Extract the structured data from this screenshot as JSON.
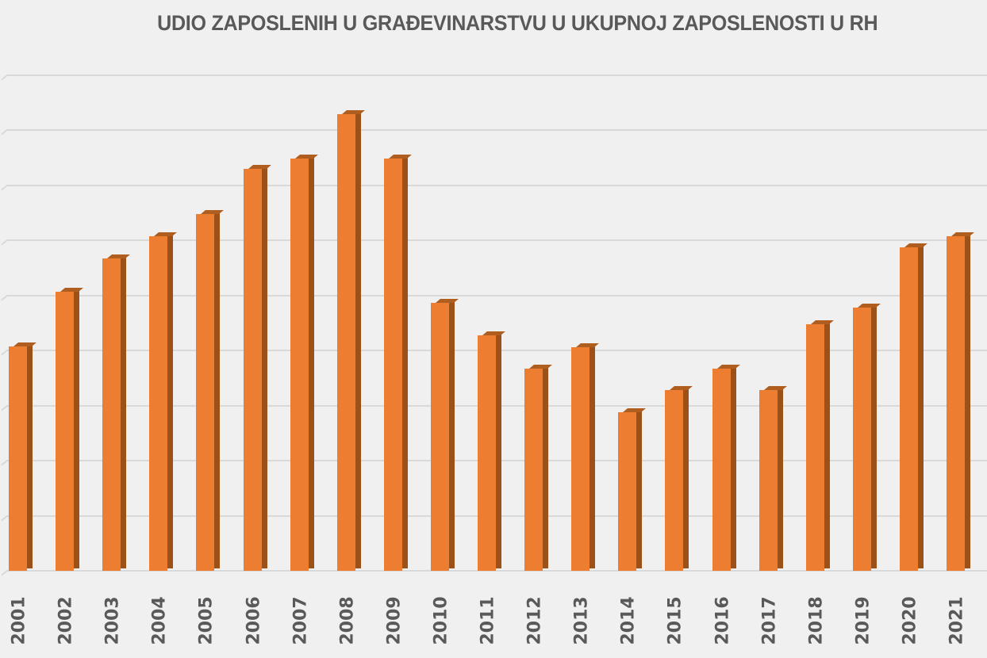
{
  "title": "UDIO ZAPOSLENIH U GRAĐEVINARSTVU U UKUPNOJ ZAPOSLENOSTI U RH",
  "colors": {
    "background": "#f0f0f0",
    "bar_front": "#ed7d31",
    "bar_side": "#9c5119",
    "bar_top": "#b05e1f",
    "gridline": "#d9d9d9",
    "text": "#595959"
  },
  "chart_data": {
    "type": "bar",
    "style": "3d-column",
    "title": "UDIO ZAPOSLENIH U GRAĐEVINARSTVU U UKUPNOJ ZAPOSLENOSTI U RH",
    "xlabel": "",
    "ylabel": "",
    "y_tick_labels_visible": false,
    "y_units_note": "relative units: 1 unit = 1 gridline step (no tick labels shown)",
    "ylim": [
      0,
      9
    ],
    "gridlines": [
      0,
      1,
      2,
      3,
      4,
      5,
      6,
      7,
      8,
      9
    ],
    "grid": true,
    "legend": null,
    "categories": [
      "2001",
      "2002",
      "2003",
      "2004",
      "2005",
      "2006",
      "2007",
      "2008",
      "2009",
      "2010",
      "2011",
      "2012",
      "2013",
      "2014",
      "2015",
      "2016",
      "2017",
      "2018",
      "2019",
      "2020",
      "2021"
    ],
    "values": [
      4.07,
      5.06,
      5.67,
      6.07,
      6.47,
      7.29,
      7.48,
      8.29,
      7.48,
      4.86,
      4.27,
      3.67,
      4.06,
      2.88,
      3.28,
      3.67,
      3.28,
      4.47,
      4.78,
      5.87,
      6.07
    ]
  }
}
